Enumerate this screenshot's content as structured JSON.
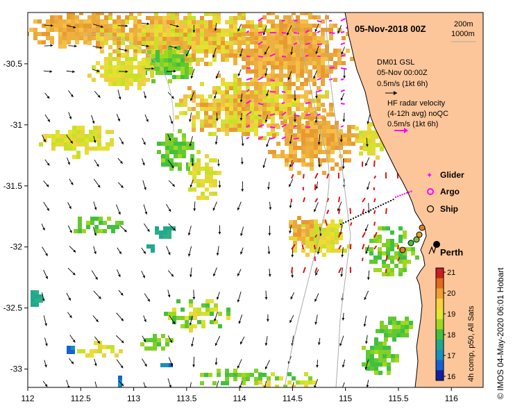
{
  "title": "05-Nov-2018 00Z",
  "isobaths": {
    "shallow": "200m",
    "deep": "1000m"
  },
  "wind": {
    "line1": "DM01 GSL",
    "line2": "05-Nov 00:00Z",
    "scale": "0.5m/s (1kt 6h)"
  },
  "hf_radar": {
    "line1": "HF radar velocity",
    "line2": "(4-12h avg) noQC",
    "scale": "0.5m/s (1kt 6h)"
  },
  "legend": {
    "glider": "Glider",
    "argo": "Argo",
    "ship": "Ship"
  },
  "places": {
    "city": "Perth"
  },
  "colorbar": {
    "label": "4h comp, p50, All Sats",
    "ticks": [
      "21",
      "20",
      "19",
      "18",
      "17",
      "16"
    ],
    "colors": [
      "#c8201e",
      "#e06a1e",
      "#f0a030",
      "#f8d040",
      "#e0e830",
      "#a0d820",
      "#40c040",
      "#20a890",
      "#1890c0",
      "#1860d0",
      "#1020a0"
    ]
  },
  "credit": "© IMOS 04-May-2020 06:01 Hobart",
  "chart_data": {
    "type": "map",
    "xlim": [
      112,
      116.3
    ],
    "ylim": [
      -33.15,
      -30.08
    ],
    "xticks": [
      "112",
      "112.5",
      "113",
      "113.5",
      "114",
      "114.5",
      "115",
      "115.5",
      "116"
    ],
    "yticks": [
      "-30.5",
      "-31",
      "-31.5",
      "-32",
      "-32.5",
      "-33"
    ],
    "xtick_values": [
      112,
      112.5,
      113,
      113.5,
      114,
      114.5,
      115,
      115.5,
      116
    ],
    "ytick_values": [
      -30.5,
      -31,
      -31.5,
      -32,
      -32.5,
      -33
    ],
    "sst_range": [
      15.5,
      21
    ],
    "perth": {
      "lon": 115.86,
      "lat": -31.95
    }
  }
}
